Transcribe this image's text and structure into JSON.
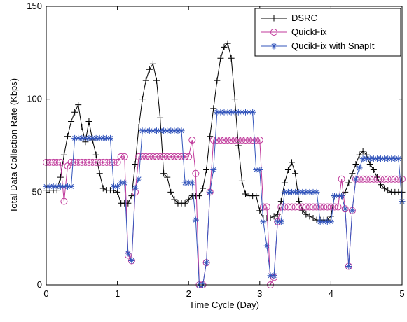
{
  "chart_data": {
    "type": "line",
    "x_label": "Time Cycle (Day)",
    "y_label": "Total Data Collection Rate (Kbps)",
    "x": [
      0,
      0.05,
      0.1,
      0.15,
      0.2,
      0.25,
      0.3,
      0.35,
      0.4,
      0.45,
      0.5,
      0.55,
      0.6,
      0.65,
      0.7,
      0.75,
      0.8,
      0.85,
      0.9,
      0.95,
      1,
      1.05,
      1.1,
      1.15,
      1.2,
      1.25,
      1.3,
      1.35,
      1.4,
      1.45,
      1.5,
      1.55,
      1.6,
      1.65,
      1.7,
      1.75,
      1.8,
      1.85,
      1.9,
      1.95,
      2,
      2.05,
      2.1,
      2.15,
      2.2,
      2.25,
      2.3,
      2.35,
      2.4,
      2.45,
      2.5,
      2.55,
      2.6,
      2.65,
      2.7,
      2.75,
      2.8,
      2.85,
      2.9,
      2.95,
      3,
      3.05,
      3.1,
      3.15,
      3.2,
      3.25,
      3.3,
      3.35,
      3.4,
      3.45,
      3.5,
      3.55,
      3.6,
      3.65,
      3.7,
      3.75,
      3.8,
      3.85,
      3.9,
      3.95,
      4,
      4.05,
      4.1,
      4.15,
      4.2,
      4.25,
      4.3,
      4.35,
      4.4,
      4.45,
      4.5,
      4.55,
      4.6,
      4.65,
      4.7,
      4.75,
      4.8,
      4.85,
      4.9,
      4.95,
      5
    ],
    "series": [
      {
        "name": "DSRC",
        "color": "#000000",
        "marker": "plus",
        "values": [
          51,
          51,
          51,
          51,
          58,
          70,
          80,
          88,
          93,
          97,
          85,
          77,
          88,
          78,
          70,
          60,
          52,
          51,
          51,
          51,
          50,
          44,
          44,
          44,
          48,
          65,
          85,
          100,
          110,
          116,
          119,
          110,
          90,
          60,
          58,
          50,
          46,
          44,
          44,
          44,
          46,
          48,
          48,
          48,
          52,
          62,
          80,
          95,
          110,
          122,
          128,
          130,
          122,
          100,
          75,
          56,
          49,
          48,
          48,
          48,
          40,
          36,
          36,
          36,
          37,
          38,
          45,
          55,
          62,
          66,
          60,
          45,
          40,
          38,
          37,
          36,
          35,
          35,
          35,
          35,
          37,
          48,
          48,
          48,
          50,
          55,
          60,
          65,
          70,
          72,
          70,
          65,
          62,
          58,
          54,
          52,
          51,
          50,
          50,
          50,
          50
        ]
      },
      {
        "name": "QuickFix",
        "color": "#c0399b",
        "marker": "circle",
        "values": [
          66,
          66,
          66,
          66,
          66,
          45,
          64,
          66,
          66,
          66,
          66,
          66,
          66,
          66,
          66,
          66,
          66,
          66,
          66,
          66,
          66,
          69,
          69,
          16,
          13,
          50,
          69,
          69,
          69,
          69,
          69,
          69,
          69,
          69,
          69,
          69,
          69,
          69,
          69,
          69,
          69,
          78,
          60,
          0,
          0,
          12,
          50,
          78,
          78,
          78,
          78,
          78,
          78,
          78,
          78,
          78,
          78,
          78,
          78,
          78,
          78,
          42,
          42,
          0,
          4,
          34,
          42,
          42,
          42,
          42,
          42,
          42,
          42,
          42,
          42,
          42,
          42,
          42,
          42,
          42,
          42,
          42,
          42,
          57,
          41,
          10,
          40,
          57,
          57,
          57,
          57,
          57,
          57,
          57,
          57,
          57,
          57,
          57,
          57,
          57,
          57
        ]
      },
      {
        "name": "QucikFix with SnapIt",
        "color": "#3355bb",
        "marker": "star",
        "values": [
          53,
          53,
          53,
          53,
          53,
          53,
          53,
          53,
          79,
          79,
          79,
          79,
          79,
          79,
          79,
          79,
          79,
          79,
          79,
          53,
          53,
          55,
          55,
          17,
          13,
          52,
          57,
          83,
          83,
          83,
          83,
          83,
          83,
          83,
          83,
          83,
          83,
          83,
          83,
          55,
          55,
          55,
          35,
          0,
          0,
          12,
          50,
          62,
          93,
          93,
          93,
          93,
          93,
          93,
          93,
          93,
          93,
          93,
          93,
          62,
          62,
          34,
          21,
          5,
          5,
          34,
          34,
          50,
          50,
          50,
          50,
          50,
          50,
          50,
          50,
          50,
          50,
          34,
          34,
          34,
          34,
          48,
          48,
          48,
          41,
          10,
          40,
          57,
          63,
          68,
          68,
          68,
          68,
          68,
          68,
          68,
          68,
          68,
          68,
          68,
          45
        ]
      }
    ],
    "xlim": [
      0,
      5
    ],
    "ylim": [
      0,
      150
    ],
    "xticks": [
      0,
      1,
      2,
      3,
      4,
      5
    ],
    "yticks": [
      0,
      50,
      100,
      150
    ],
    "grid": false,
    "legend": "upper right"
  }
}
